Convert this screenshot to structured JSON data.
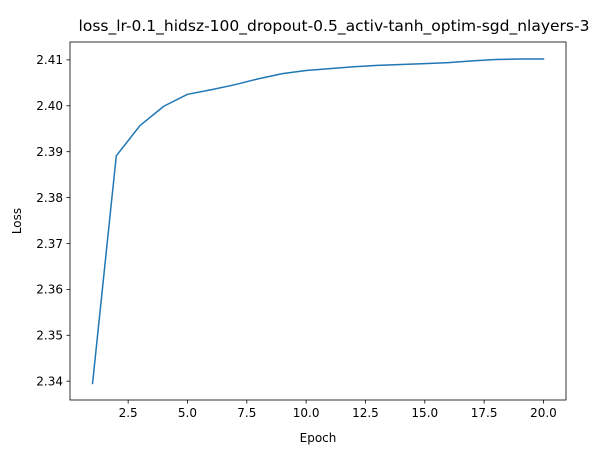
{
  "chart_data": {
    "type": "line",
    "title": "loss_lr-0.1_hidsz-100_dropout-0.5_activ-tanh_optim-sgd_nlayers-3",
    "xlabel": "Epoch",
    "ylabel": "Loss",
    "xlim": [
      0.05,
      20.95
    ],
    "ylim": [
      2.3359,
      2.4139
    ],
    "xticks": [
      2.5,
      5.0,
      7.5,
      10.0,
      12.5,
      15.0,
      17.5,
      20.0
    ],
    "xtick_labels": [
      "2.5",
      "5.0",
      "7.5",
      "10.0",
      "12.5",
      "15.0",
      "17.5",
      "20.0"
    ],
    "yticks": [
      2.34,
      2.35,
      2.36,
      2.37,
      2.38,
      2.39,
      2.4,
      2.41
    ],
    "ytick_labels": [
      "2.34",
      "2.35",
      "2.36",
      "2.37",
      "2.38",
      "2.39",
      "2.40",
      "2.41"
    ],
    "grid": false,
    "series": [
      {
        "color": "#1f77b4",
        "x": [
          1,
          2,
          3,
          4,
          5,
          6,
          7,
          8,
          9,
          10,
          11,
          12,
          13,
          14,
          15,
          16,
          17,
          18,
          19,
          20
        ],
        "y": [
          2.3395,
          2.3891,
          2.3957,
          2.3999,
          2.4025,
          2.4035,
          2.4046,
          2.4059,
          2.407,
          2.4077,
          2.4081,
          2.4085,
          2.4088,
          2.409,
          2.4092,
          2.4094,
          2.4098,
          2.4101,
          2.4102,
          2.4102
        ]
      }
    ]
  }
}
